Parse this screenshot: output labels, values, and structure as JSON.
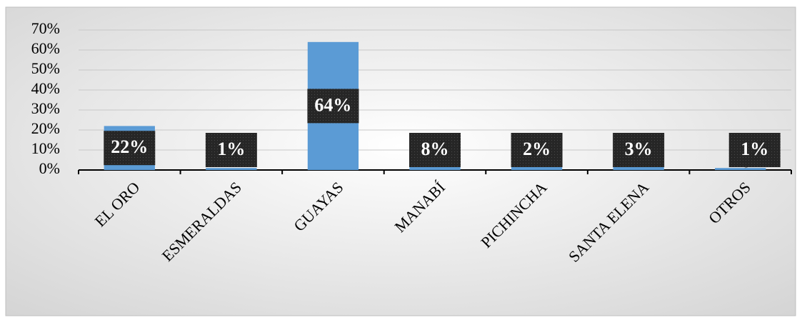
{
  "chart_data": {
    "type": "bar",
    "categories": [
      "EL ORO",
      "ESMERALDAS",
      "GUAYAS",
      "MANABÍ",
      "PICHINCHA",
      "SANTA ELENA",
      "OTROS"
    ],
    "values": [
      22,
      1,
      64,
      8,
      2,
      3,
      1
    ],
    "value_labels": [
      "22%",
      "1%",
      "64%",
      "8%",
      "2%",
      "3%",
      "1%"
    ],
    "color": "#5b9bd5",
    "ylim": [
      0,
      70
    ],
    "yticks": [
      {
        "value": 0,
        "label": "0%"
      },
      {
        "value": 10,
        "label": "10%"
      },
      {
        "value": 20,
        "label": "20%"
      },
      {
        "value": 30,
        "label": "30%"
      },
      {
        "value": 40,
        "label": "40%"
      },
      {
        "value": 50,
        "label": "50%"
      },
      {
        "value": 60,
        "label": "60%"
      },
      {
        "value": 70,
        "label": "70%"
      }
    ],
    "grid": true
  }
}
